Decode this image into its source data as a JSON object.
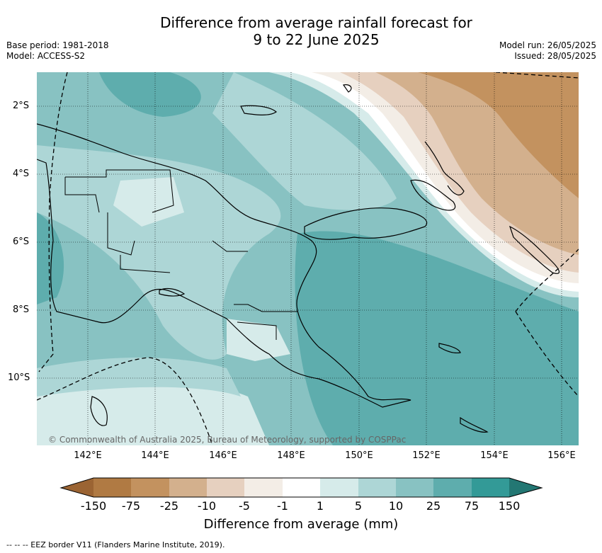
{
  "title_line1": "Difference from average rainfall forecast for",
  "title_line2": "9 to 22 June 2025",
  "meta_left": {
    "base_period": "Base period: 1981-2018",
    "model": "Model: ACCESS-S2"
  },
  "meta_right": {
    "model_run": "Model run: 26/05/2025",
    "issued": "Issued: 28/05/2025"
  },
  "map": {
    "lat_labels": [
      "2°S",
      "4°S",
      "6°S",
      "8°S",
      "10°S"
    ],
    "lon_labels": [
      "142°E",
      "144°E",
      "146°E",
      "148°E",
      "150°E",
      "152°E",
      "154°E",
      "156°E"
    ],
    "copyright": "© Commonwealth of Australia 2025, Bureau of Meteorology, supported by COSPPac"
  },
  "colorbar": {
    "ticks": [
      "-150",
      "-75",
      "-25",
      "-10",
      "-5",
      "-1",
      "1",
      "5",
      "10",
      "25",
      "75",
      "150"
    ],
    "colors": [
      "#9b6433",
      "#b07a43",
      "#c3925f",
      "#d3b08d",
      "#e6d0bf",
      "#f3ede6",
      "#ffffff",
      "#d6ebea",
      "#add6d6",
      "#88c2c2",
      "#5eadad",
      "#339a97",
      "#237773"
    ],
    "label": "Difference from average (mm)"
  },
  "footnote": "--  --  -- EEZ border V11 (Flanders Marine Institute, 2019)."
}
